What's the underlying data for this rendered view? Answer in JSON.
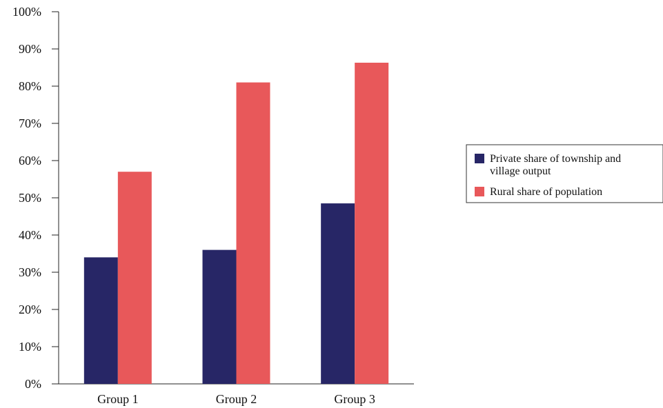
{
  "chart_data": {
    "type": "bar",
    "categories": [
      "Group 1",
      "Group 2",
      "Group 3"
    ],
    "series": [
      {
        "name": "Private share of township and village output",
        "values": [
          34,
          36,
          48.5
        ],
        "color": "#272666"
      },
      {
        "name": "Rural share of population",
        "values": [
          57,
          81,
          86.3
        ],
        "color": "#E8585A"
      }
    ],
    "ylim": [
      0,
      100
    ],
    "yticks": [
      0,
      10,
      20,
      30,
      40,
      50,
      60,
      70,
      80,
      90,
      100
    ],
    "ytick_labels": [
      "0%",
      "10%",
      "20%",
      "30%",
      "40%",
      "50%",
      "60%",
      "70%",
      "80%",
      "90%",
      "100%"
    ],
    "grid": false,
    "legend_position": "right",
    "legend_lines": [
      [
        "Private share of township and",
        "village output"
      ],
      [
        "Rural share of population"
      ]
    ],
    "title": "",
    "xlabel": "",
    "ylabel": ""
  }
}
